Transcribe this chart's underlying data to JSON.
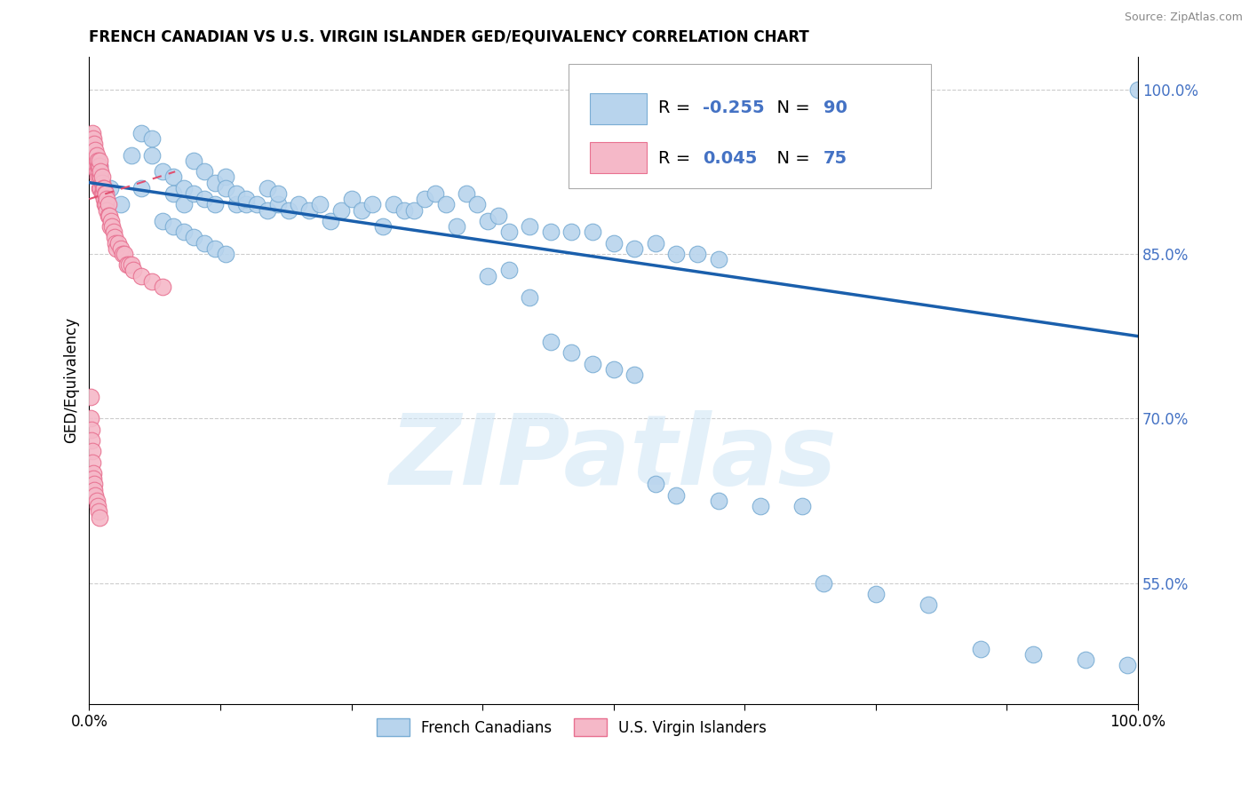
{
  "title": "FRENCH CANADIAN VS U.S. VIRGIN ISLANDER GED/EQUIVALENCY CORRELATION CHART",
  "source": "Source: ZipAtlas.com",
  "ylabel": "GED/Equivalency",
  "right_yticks": [
    55.0,
    70.0,
    85.0,
    100.0
  ],
  "legend_blue_r": "-0.255",
  "legend_blue_n": "90",
  "legend_pink_r": "0.045",
  "legend_pink_n": "75",
  "blue_color": "#b8d4ed",
  "blue_edge_color": "#7aadd4",
  "pink_color": "#f5b8c8",
  "pink_edge_color": "#e87090",
  "trend_blue_color": "#1a5fac",
  "trend_pink_color": "#e05070",
  "watermark": "ZIPatlas",
  "blue_x": [
    0.01,
    0.02,
    0.03,
    0.04,
    0.05,
    0.05,
    0.06,
    0.06,
    0.07,
    0.08,
    0.08,
    0.09,
    0.09,
    0.1,
    0.1,
    0.11,
    0.11,
    0.12,
    0.12,
    0.13,
    0.13,
    0.14,
    0.14,
    0.15,
    0.15,
    0.16,
    0.17,
    0.17,
    0.18,
    0.18,
    0.19,
    0.2,
    0.21,
    0.22,
    0.23,
    0.24,
    0.25,
    0.26,
    0.27,
    0.28,
    0.29,
    0.3,
    0.31,
    0.32,
    0.33,
    0.34,
    0.35,
    0.36,
    0.37,
    0.38,
    0.39,
    0.4,
    0.42,
    0.44,
    0.46,
    0.48,
    0.5,
    0.52,
    0.54,
    0.56,
    0.58,
    0.6,
    0.38,
    0.4,
    0.42,
    0.44,
    0.46,
    0.48,
    0.5,
    0.52,
    0.54,
    0.56,
    0.6,
    0.64,
    0.68,
    0.7,
    0.75,
    0.8,
    0.85,
    0.9,
    0.95,
    0.99,
    1.0,
    0.07,
    0.08,
    0.09,
    0.1,
    0.11,
    0.12,
    0.13
  ],
  "blue_y": [
    0.93,
    0.91,
    0.895,
    0.94,
    0.91,
    0.96,
    0.955,
    0.94,
    0.925,
    0.92,
    0.905,
    0.91,
    0.895,
    0.905,
    0.935,
    0.9,
    0.925,
    0.895,
    0.915,
    0.92,
    0.91,
    0.895,
    0.905,
    0.895,
    0.9,
    0.895,
    0.89,
    0.91,
    0.895,
    0.905,
    0.89,
    0.895,
    0.89,
    0.895,
    0.88,
    0.89,
    0.9,
    0.89,
    0.895,
    0.875,
    0.895,
    0.89,
    0.89,
    0.9,
    0.905,
    0.895,
    0.875,
    0.905,
    0.895,
    0.88,
    0.885,
    0.87,
    0.875,
    0.87,
    0.87,
    0.87,
    0.86,
    0.855,
    0.86,
    0.85,
    0.85,
    0.845,
    0.83,
    0.835,
    0.81,
    0.77,
    0.76,
    0.75,
    0.745,
    0.74,
    0.64,
    0.63,
    0.625,
    0.62,
    0.62,
    0.55,
    0.54,
    0.53,
    0.49,
    0.485,
    0.48,
    0.475,
    1.0,
    0.88,
    0.875,
    0.87,
    0.865,
    0.86,
    0.855,
    0.85
  ],
  "pink_x": [
    0.002,
    0.003,
    0.003,
    0.004,
    0.004,
    0.005,
    0.005,
    0.005,
    0.006,
    0.006,
    0.006,
    0.007,
    0.007,
    0.007,
    0.008,
    0.008,
    0.008,
    0.009,
    0.009,
    0.01,
    0.01,
    0.01,
    0.01,
    0.011,
    0.011,
    0.011,
    0.012,
    0.012,
    0.012,
    0.013,
    0.013,
    0.014,
    0.014,
    0.015,
    0.015,
    0.016,
    0.016,
    0.017,
    0.017,
    0.018,
    0.018,
    0.019,
    0.02,
    0.021,
    0.022,
    0.023,
    0.024,
    0.025,
    0.026,
    0.028,
    0.03,
    0.032,
    0.034,
    0.036,
    0.038,
    0.04,
    0.042,
    0.05,
    0.06,
    0.07,
    0.001,
    0.001,
    0.002,
    0.002,
    0.003,
    0.003,
    0.004,
    0.004,
    0.005,
    0.005,
    0.006,
    0.007,
    0.008,
    0.009,
    0.01
  ],
  "pink_y": [
    0.955,
    0.96,
    0.95,
    0.945,
    0.955,
    0.94,
    0.95,
    0.935,
    0.94,
    0.93,
    0.945,
    0.935,
    0.925,
    0.94,
    0.93,
    0.92,
    0.935,
    0.925,
    0.93,
    0.92,
    0.93,
    0.91,
    0.935,
    0.92,
    0.91,
    0.925,
    0.915,
    0.905,
    0.92,
    0.91,
    0.905,
    0.9,
    0.91,
    0.905,
    0.895,
    0.905,
    0.895,
    0.9,
    0.89,
    0.895,
    0.885,
    0.885,
    0.875,
    0.88,
    0.875,
    0.87,
    0.865,
    0.86,
    0.855,
    0.86,
    0.855,
    0.85,
    0.85,
    0.84,
    0.84,
    0.84,
    0.835,
    0.83,
    0.825,
    0.82,
    0.72,
    0.7,
    0.69,
    0.68,
    0.67,
    0.66,
    0.65,
    0.645,
    0.64,
    0.635,
    0.63,
    0.625,
    0.62,
    0.615,
    0.61
  ]
}
